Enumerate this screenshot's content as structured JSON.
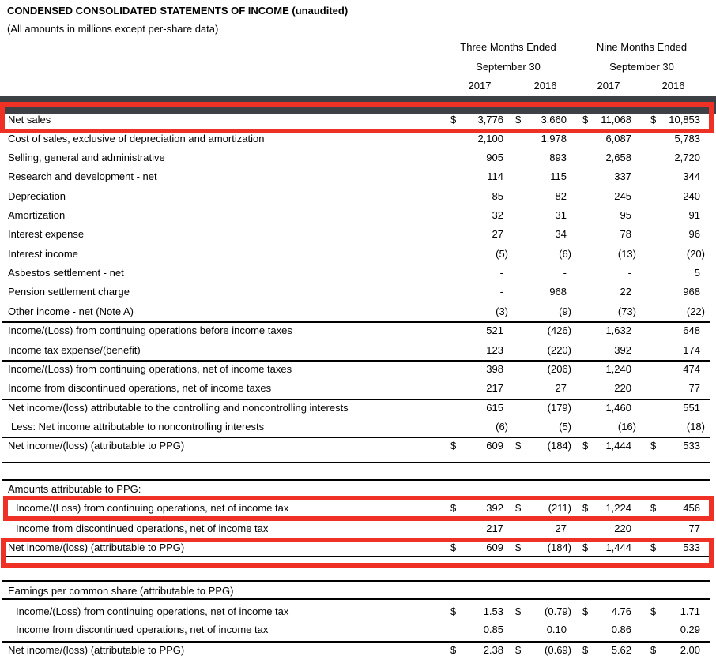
{
  "title": "CONDENSED CONSOLIDATED STATEMENTS OF INCOME (unaudited)",
  "subtitle": "(All amounts in millions except per-share data)",
  "header": {
    "group1_line1": "Three Months Ended",
    "group1_line2": "September 30",
    "group2_line1": "Nine Months Ended",
    "group2_line2": "September 30",
    "years": [
      "2017",
      "2016",
      "2017",
      "2016"
    ]
  },
  "colors": {
    "highlight_red": "#ee3124",
    "dark_bar": "#3d4045"
  },
  "table": {
    "dollar_sign": "$",
    "sections": [
      {
        "name": "income",
        "rows": [
          {
            "label": "Net sales",
            "dollar": true,
            "values": [
              "3,776",
              "3,660",
              "11,068",
              "10,853"
            ],
            "highlight": true
          },
          {
            "label": "Cost of sales, exclusive of depreciation and amortization",
            "values": [
              "2,100",
              "1,978",
              "6,087",
              "5,783"
            ]
          },
          {
            "label": "Selling, general and administrative",
            "values": [
              "905",
              "893",
              "2,658",
              "2,720"
            ]
          },
          {
            "label": "Research and development - net",
            "values": [
              "114",
              "115",
              "337",
              "344"
            ]
          },
          {
            "label": "Depreciation",
            "values": [
              "85",
              "82",
              "245",
              "240"
            ]
          },
          {
            "label": "Amortization",
            "values": [
              "32",
              "31",
              "95",
              "91"
            ]
          },
          {
            "label": "Interest expense",
            "values": [
              "27",
              "34",
              "78",
              "96"
            ]
          },
          {
            "label": "Interest income",
            "values": [
              "(5)",
              "(6)",
              "(13)",
              "(20)"
            ]
          },
          {
            "label": "Asbestos settlement - net",
            "values": [
              "-",
              "-",
              "-",
              "5"
            ]
          },
          {
            "label": "Pension settlement charge",
            "values": [
              "-",
              "968",
              "22",
              "968"
            ]
          },
          {
            "label": "Other income - net (Note A)",
            "values": [
              "(3)",
              "(9)",
              "(73)",
              "(22)"
            ]
          },
          {
            "label": "Income/(Loss) from continuing operations before income taxes",
            "values": [
              "521",
              "(426)",
              "1,632",
              "648"
            ],
            "topline": true
          },
          {
            "label": "Income tax expense/(benefit)",
            "values": [
              "123",
              "(220)",
              "392",
              "174"
            ]
          },
          {
            "label": "Income/(Loss) from continuing operations, net of income taxes",
            "values": [
              "398",
              "(206)",
              "1,240",
              "474"
            ],
            "topline": true
          },
          {
            "label": "Income from discontinued operations, net of income taxes",
            "values": [
              "217",
              "27",
              "220",
              "77"
            ]
          },
          {
            "label": "Net income/(loss) attributable to the controlling and noncontrolling interests",
            "values": [
              "615",
              "(179)",
              "1,460",
              "551"
            ],
            "topline": true
          },
          {
            "label": "Less: Net income attributable to noncontrolling interests",
            "values": [
              "(6)",
              "(5)",
              "(16)",
              "(18)"
            ],
            "indent": 1
          },
          {
            "label": "Net income/(loss) (attributable to PPG)",
            "dollar": true,
            "values": [
              "609",
              "(184)",
              "1,444",
              "533"
            ],
            "topline": true
          }
        ]
      },
      {
        "name": "amounts-attributable",
        "heading": "Amounts attributable to PPG:",
        "rows": [
          {
            "label": "Income/(Loss) from continuing operations, net of income tax",
            "dollar": true,
            "values": [
              "392",
              "(211)",
              "1,224",
              "456"
            ],
            "indent": 2,
            "highlight": true
          },
          {
            "label": "Income from discontinued operations, net of income tax",
            "values": [
              "217",
              "27",
              "220",
              "77"
            ],
            "indent": 2
          },
          {
            "label": "Net income/(loss) (attributable to PPG)",
            "dollar": true,
            "values": [
              "609",
              "(184)",
              "1,444",
              "533"
            ],
            "highlight": true
          }
        ]
      },
      {
        "name": "earnings-per-share",
        "heading": "Earnings per common share (attributable to PPG)",
        "rows": [
          {
            "label": "Income/(Loss) from continuing operations, net of income tax",
            "dollar": true,
            "values": [
              "1.53",
              "(0.79)",
              "4.76",
              "1.71"
            ],
            "indent": 2
          },
          {
            "label": "Income from discontinued operations, net of income tax",
            "values": [
              "0.85",
              "0.10",
              "0.86",
              "0.29"
            ],
            "indent": 2
          },
          {
            "label": "Net income/(loss) (attributable to PPG)",
            "dollar": true,
            "values": [
              "2.38",
              "(0.69)",
              "5.62",
              "2.00"
            ],
            "topline": true
          }
        ]
      }
    ]
  }
}
